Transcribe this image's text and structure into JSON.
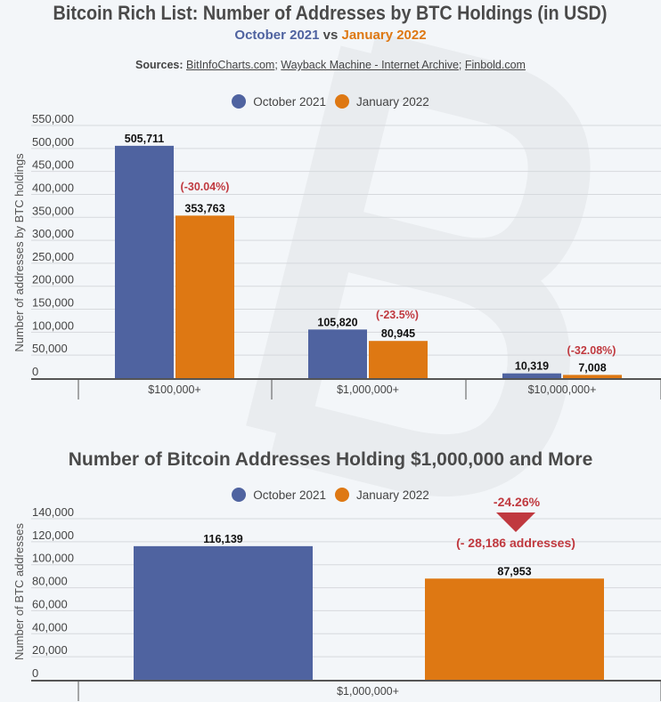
{
  "header": {
    "title": "Bitcoin Rich List: Number of Addresses by BTC Holdings (in USD)",
    "subtitle_a": "October 2021",
    "subtitle_vs": " vs ",
    "subtitle_b": "January 2022",
    "sources_label": "Sources:",
    "sources": [
      "BitInfoCharts.com",
      "Wayback Machine - Internet Archive",
      "Finbold.com"
    ]
  },
  "colors": {
    "october": "#4f63a0",
    "january": "#de7813",
    "annotation": "#c0393f"
  },
  "chart_data": [
    {
      "type": "bar",
      "legend": [
        "October 2021",
        "January 2022"
      ],
      "legend_position": "top",
      "categories": [
        "$100,000+",
        "$1,000,000+",
        "$10,000,000+"
      ],
      "series": [
        {
          "name": "October 2021",
          "values": [
            505711,
            105820,
            10319
          ],
          "labels": [
            "505,711",
            "105,820",
            "10,319"
          ]
        },
        {
          "name": "January 2022",
          "values": [
            353763,
            80945,
            7008
          ],
          "labels": [
            "353,763",
            "80,945",
            "7,008"
          ]
        }
      ],
      "annotations": [
        "(-30.04%)",
        "(-23.5%)",
        "(-32.08%)"
      ],
      "ylabel": "Number of addresses by BTC holdings",
      "ylim": [
        0,
        550000
      ],
      "yticks": [
        "0",
        "50,000",
        "100,000",
        "150,000",
        "200,000",
        "250,000",
        "300,000",
        "350,000",
        "400,000",
        "450,000",
        "500,000",
        "550,000"
      ],
      "grid": true
    },
    {
      "type": "bar",
      "title": "Number of Bitcoin Addresses Holding $1,000,000 and More",
      "legend": [
        "October 2021",
        "January 2022"
      ],
      "legend_position": "top",
      "categories": [
        "$1,000,000+"
      ],
      "series": [
        {
          "name": "October 2021",
          "values": [
            116139
          ],
          "labels": [
            "116,139"
          ]
        },
        {
          "name": "January 2022",
          "values": [
            87953
          ],
          "labels": [
            "87,953"
          ]
        }
      ],
      "annotations": [
        "-24.26%",
        "(- 28,186 addresses)"
      ],
      "ylabel": "Number of BTC addresses",
      "ylim": [
        0,
        140000
      ],
      "yticks": [
        "0",
        "20,000",
        "40,000",
        "60,000",
        "80,000",
        "100,000",
        "120,000",
        "140,000"
      ],
      "grid": true
    }
  ]
}
